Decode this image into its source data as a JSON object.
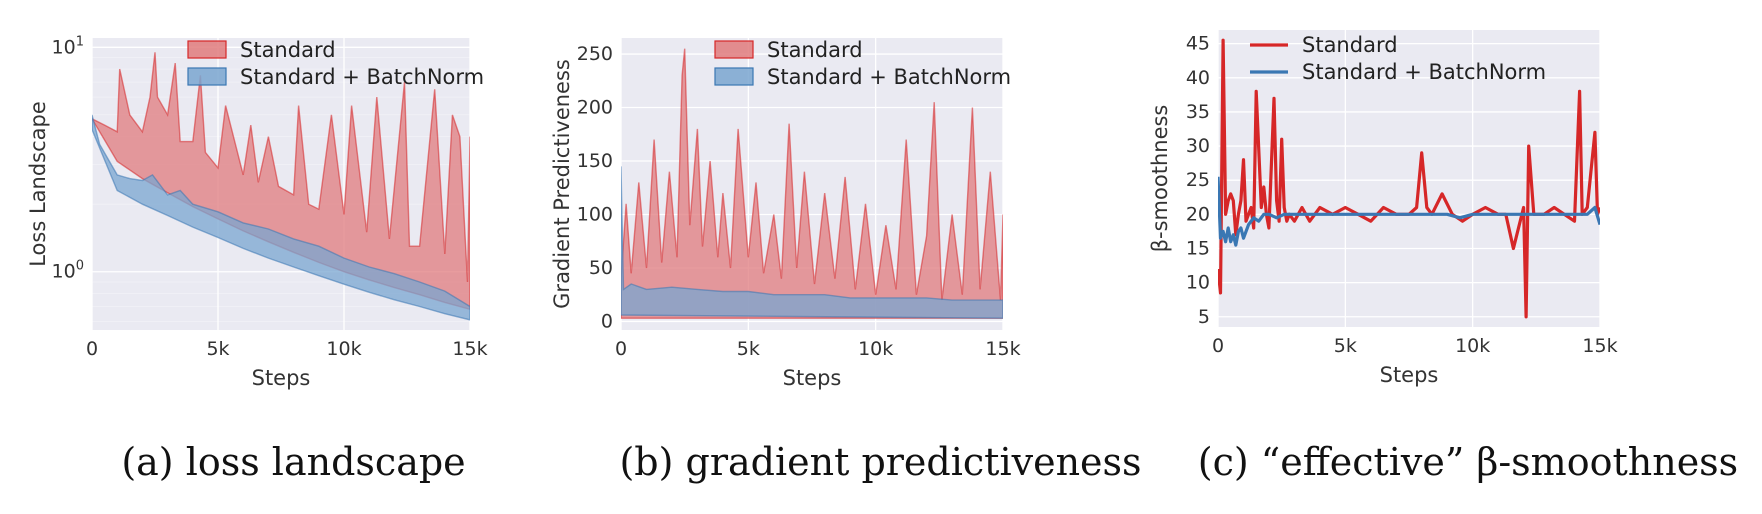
{
  "colors": {
    "standard": "#d62728",
    "standard_fill": "#e07b7d",
    "batchnorm": "#3a77b3",
    "batchnorm_fill": "#7aa6d0",
    "plot_bg": "#eaeaf2",
    "grid": "#ffffff"
  },
  "chart_data": [
    {
      "id": "a",
      "type": "area",
      "title": "",
      "caption": "(a) loss landscape",
      "xlabel": "Steps",
      "ylabel": "Loss Landscape",
      "yscale": "log",
      "xlim": [
        0,
        15000
      ],
      "ylim": [
        0.55,
        11
      ],
      "xticks": [
        0,
        5000,
        10000,
        15000
      ],
      "xtick_labels": [
        "0",
        "5k",
        "10k",
        "15k"
      ],
      "yticks": [
        1,
        10
      ],
      "ytick_labels": [
        "10⁰",
        "10¹"
      ],
      "legend": [
        "Standard",
        "Standard + BatchNorm"
      ],
      "legend_position": "top-right",
      "series": [
        {
          "name": "Standard",
          "lower": {
            "x": [
              0,
              1000,
              2000,
              3000,
              4000,
              5000,
              6000,
              7000,
              8000,
              9000,
              10000,
              11000,
              12000,
              13000,
              14000,
              15000
            ],
            "y": [
              4.8,
              3.1,
              2.6,
              2.25,
              1.95,
              1.72,
              1.52,
              1.36,
              1.22,
              1.1,
              1.0,
              0.92,
              0.85,
              0.79,
              0.73,
              0.68
            ]
          },
          "upper": {
            "x": [
              0,
              500,
              1000,
              1100,
              1500,
              2000,
              2300,
              2500,
              2600,
              3000,
              3300,
              3500,
              4000,
              4300,
              4500,
              5000,
              5300,
              6000,
              6300,
              6600,
              7000,
              7400,
              8000,
              8200,
              8600,
              9000,
              9500,
              10000,
              10300,
              10900,
              11300,
              11800,
              12400,
              12600,
              13000,
              13600,
              14000,
              14300,
              14600,
              14900,
              15000
            ],
            "y": [
              4.8,
              4.5,
              4.2,
              8.0,
              5.0,
              4.2,
              6.0,
              9.5,
              6.0,
              5.0,
              8.5,
              3.8,
              3.8,
              7.5,
              3.4,
              2.9,
              5.5,
              2.7,
              4.5,
              2.5,
              4.0,
              2.4,
              2.2,
              5.5,
              2.0,
              1.9,
              5.0,
              1.8,
              5.5,
              1.5,
              6.0,
              1.4,
              7.0,
              1.3,
              1.3,
              6.5,
              1.2,
              5.0,
              4.0,
              0.9,
              4.0
            ]
          }
        },
        {
          "name": "Standard + BatchNorm",
          "lower": {
            "x": [
              0,
              1000,
              2000,
              3000,
              4000,
              5000,
              6000,
              7000,
              8000,
              9000,
              10000,
              11000,
              12000,
              13000,
              14000,
              15000
            ],
            "y": [
              4.3,
              2.3,
              2.0,
              1.78,
              1.58,
              1.42,
              1.27,
              1.15,
              1.05,
              0.96,
              0.88,
              0.81,
              0.75,
              0.7,
              0.65,
              0.61
            ]
          },
          "upper": {
            "x": [
              0,
              300,
              1000,
              1500,
              2000,
              2400,
              3000,
              3500,
              4000,
              5000,
              6000,
              7000,
              8000,
              9000,
              10000,
              11000,
              12000,
              13000,
              14000,
              15000
            ],
            "y": [
              5.0,
              3.6,
              2.7,
              2.6,
              2.55,
              2.7,
              2.2,
              2.3,
              2.0,
              1.85,
              1.65,
              1.55,
              1.4,
              1.3,
              1.15,
              1.05,
              0.98,
              0.9,
              0.82,
              0.7
            ]
          }
        }
      ]
    },
    {
      "id": "b",
      "type": "area",
      "title": "",
      "caption": "(b) gradient predictiveness",
      "xlabel": "Steps",
      "ylabel": "Gradient Predictiveness",
      "yscale": "linear",
      "xlim": [
        0,
        15000
      ],
      "ylim": [
        -8,
        265
      ],
      "xticks": [
        0,
        5000,
        10000,
        15000
      ],
      "xtick_labels": [
        "0",
        "5k",
        "10k",
        "15k"
      ],
      "yticks": [
        0,
        50,
        100,
        150,
        200,
        250
      ],
      "ytick_labels": [
        "0",
        "50",
        "100",
        "150",
        "200",
        "250"
      ],
      "legend": [
        "Standard",
        "Standard + BatchNorm"
      ],
      "legend_position": "top-right",
      "series": [
        {
          "name": "Standard",
          "lower": {
            "x": [
              0,
              15000
            ],
            "y": [
              3,
              3
            ]
          },
          "upper": {
            "x": [
              0,
              200,
              400,
              700,
              1000,
              1300,
              1600,
              1900,
              2200,
              2400,
              2500,
              2700,
              3000,
              3200,
              3500,
              3800,
              4000,
              4300,
              4600,
              5000,
              5300,
              5600,
              6000,
              6300,
              6600,
              6900,
              7200,
              7600,
              8000,
              8400,
              8800,
              9200,
              9600,
              10000,
              10400,
              10800,
              11200,
              11600,
              12000,
              12300,
              12600,
              13000,
              13400,
              13800,
              14100,
              14500,
              14900,
              15000
            ],
            "y": [
              40,
              110,
              45,
              130,
              50,
              170,
              55,
              140,
              60,
              230,
              255,
              90,
              180,
              70,
              150,
              60,
              120,
              50,
              180,
              60,
              130,
              45,
              100,
              40,
              185,
              50,
              140,
              35,
              120,
              40,
              135,
              30,
              110,
              25,
              90,
              30,
              170,
              25,
              80,
              205,
              20,
              100,
              25,
              200,
              30,
              140,
              20,
              100
            ]
          }
        },
        {
          "name": "Standard + BatchNorm",
          "lower": {
            "x": [
              0,
              15000
            ],
            "y": [
              6,
              3
            ]
          },
          "upper": {
            "x": [
              0,
              100,
              400,
              1000,
              2000,
              3000,
              4000,
              5000,
              6000,
              7000,
              8000,
              9000,
              10000,
              11000,
              12000,
              13000,
              14000,
              15000
            ],
            "y": [
              145,
              30,
              35,
              30,
              32,
              30,
              28,
              28,
              25,
              25,
              25,
              22,
              22,
              22,
              22,
              20,
              20,
              20
            ]
          }
        }
      ]
    },
    {
      "id": "c",
      "type": "line",
      "title": "",
      "caption": "(c) “effective” β-smoothness",
      "xlabel": "Steps",
      "ylabel": "β-smoothness",
      "yscale": "linear",
      "xlim": [
        0,
        15000
      ],
      "ylim": [
        3.5,
        47
      ],
      "xticks": [
        0,
        5000,
        10000,
        15000
      ],
      "xtick_labels": [
        "0",
        "5k",
        "10k",
        "15k"
      ],
      "yticks": [
        5,
        10,
        15,
        20,
        25,
        30,
        35,
        40,
        45
      ],
      "ytick_labels": [
        "5",
        "10",
        "15",
        "20",
        "25",
        "30",
        "35",
        "40",
        "45"
      ],
      "legend": [
        "Standard",
        "Standard + BatchNorm"
      ],
      "legend_position": "top-right",
      "series": [
        {
          "name": "Standard",
          "x": [
            0,
            100,
            200,
            300,
            400,
            500,
            600,
            700,
            800,
            900,
            1000,
            1100,
            1300,
            1400,
            1500,
            1700,
            1800,
            1900,
            2000,
            2200,
            2300,
            2400,
            2500,
            2600,
            2700,
            2800,
            3000,
            3300,
            3600,
            4000,
            4500,
            5000,
            5500,
            6000,
            6500,
            7000,
            7500,
            7800,
            8000,
            8200,
            8400,
            8800,
            9200,
            9600,
            10000,
            10500,
            11000,
            11300,
            11600,
            12000,
            12100,
            12200,
            12400,
            12800,
            13200,
            13600,
            14000,
            14200,
            14300,
            14500,
            14800,
            14900,
            15000
          ],
          "y": [
            12,
            8.5,
            45.5,
            20,
            22,
            23,
            22,
            17,
            20,
            22,
            28,
            19,
            21,
            18,
            38,
            21,
            24,
            20,
            18,
            37,
            22,
            19,
            31,
            21,
            19,
            20,
            19,
            21,
            19,
            21,
            20,
            21,
            20,
            19,
            21,
            20,
            20,
            21,
            29,
            21,
            20,
            23,
            20,
            19,
            20,
            21,
            20,
            20,
            15,
            21,
            5,
            30,
            20,
            20,
            21,
            20,
            19,
            38,
            20,
            21,
            32,
            20,
            21
          ]
        },
        {
          "name": "Standard + BatchNorm",
          "x": [
            0,
            100,
            200,
            300,
            400,
            500,
            600,
            700,
            800,
            900,
            1000,
            1200,
            1400,
            1600,
            1800,
            2000,
            2300,
            2600,
            3000,
            3500,
            4000,
            5000,
            6000,
            7000,
            8000,
            9000,
            9500,
            10000,
            11000,
            12000,
            13000,
            14000,
            14500,
            14800,
            15000
          ],
          "y": [
            25.5,
            16.5,
            17.5,
            16,
            18,
            16,
            17,
            15.5,
            17.5,
            18,
            16.5,
            18.5,
            19.5,
            19,
            20,
            20,
            19.5,
            20,
            20,
            20,
            20,
            20,
            20,
            20,
            20,
            20,
            19.5,
            20,
            20,
            20,
            20,
            20,
            20,
            21,
            18.5
          ]
        }
      ]
    }
  ]
}
